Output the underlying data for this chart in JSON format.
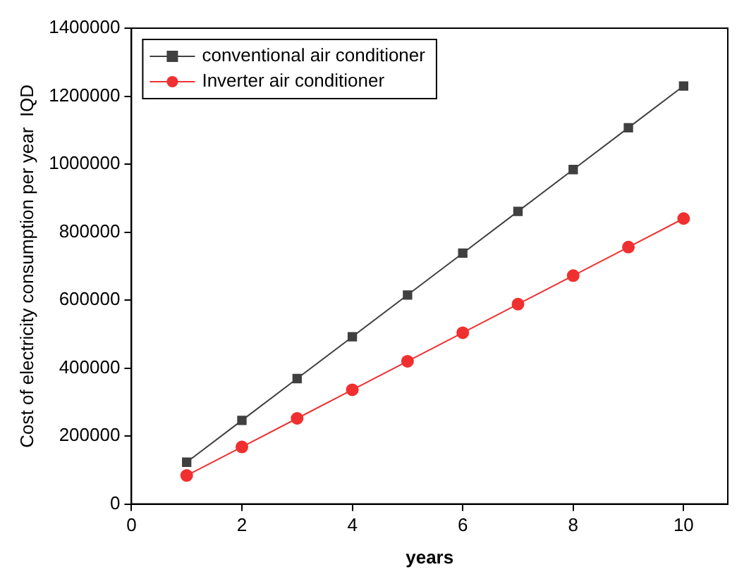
{
  "chart_data": {
    "type": "line",
    "xlabel": "years",
    "ylabel": "Cost of electricity consumption per year  IQD",
    "x": [
      1,
      2,
      3,
      4,
      5,
      6,
      7,
      8,
      9,
      10
    ],
    "series": [
      {
        "name": "conventional air conditioner",
        "color": "#404040",
        "marker": "square",
        "values": [
          123000,
          246000,
          369000,
          492000,
          615000,
          738000,
          861000,
          984000,
          1107000,
          1230000
        ]
      },
      {
        "name": "Inverter air conditioner",
        "color": "#f03030",
        "marker": "circle",
        "values": [
          84000,
          168000,
          252000,
          336000,
          420000,
          504000,
          588000,
          672000,
          756000,
          840000
        ]
      }
    ],
    "xlim": [
      0,
      10.8
    ],
    "xticks": [
      0,
      2,
      4,
      6,
      8,
      10
    ],
    "ylim": [
      0,
      1400000
    ],
    "yticks": [
      0,
      200000,
      400000,
      600000,
      800000,
      1000000,
      1200000,
      1400000
    ],
    "grid": false,
    "legend": "top left",
    "line_style": "solid"
  }
}
